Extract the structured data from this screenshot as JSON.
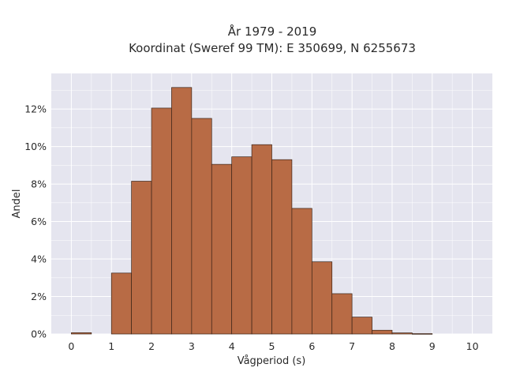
{
  "chart_data": {
    "type": "bar",
    "title_line1": "År 1979 - 2019",
    "title_line2": "Koordinat (Sweref 99 TM): E 350699, N 6255673",
    "xlabel": "Vågperiod (s)",
    "ylabel": "Andel",
    "bin_width": 0.5,
    "bins": [
      {
        "start": 0.0,
        "value": 0.07
      },
      {
        "start": 0.5,
        "value": 0.0
      },
      {
        "start": 1.0,
        "value": 3.25
      },
      {
        "start": 1.5,
        "value": 8.15
      },
      {
        "start": 2.0,
        "value": 12.05
      },
      {
        "start": 2.5,
        "value": 13.15
      },
      {
        "start": 3.0,
        "value": 11.5
      },
      {
        "start": 3.5,
        "value": 9.05
      },
      {
        "start": 4.0,
        "value": 9.45
      },
      {
        "start": 4.5,
        "value": 10.1
      },
      {
        "start": 5.0,
        "value": 9.3
      },
      {
        "start": 5.5,
        "value": 6.7
      },
      {
        "start": 6.0,
        "value": 3.85
      },
      {
        "start": 6.5,
        "value": 2.15
      },
      {
        "start": 7.0,
        "value": 0.9
      },
      {
        "start": 7.5,
        "value": 0.2
      },
      {
        "start": 8.0,
        "value": 0.06
      },
      {
        "start": 8.5,
        "value": 0.02
      },
      {
        "start": 9.0,
        "value": 0.0
      },
      {
        "start": 9.5,
        "value": 0.0
      }
    ],
    "x_ticks": [
      0,
      1,
      2,
      3,
      4,
      5,
      6,
      7,
      8,
      9,
      10
    ],
    "y_ticks": [
      0,
      2,
      4,
      6,
      8,
      10,
      12
    ],
    "y_tick_suffix": "%",
    "xlim": [
      -0.5,
      10.5
    ],
    "ylim": [
      0,
      13.9
    ],
    "grid": true,
    "bar_color": "#b86b45",
    "bar_edge_color": "#3a2418",
    "plot_background": "#e5e5ef",
    "grid_color": "#ffffff"
  }
}
